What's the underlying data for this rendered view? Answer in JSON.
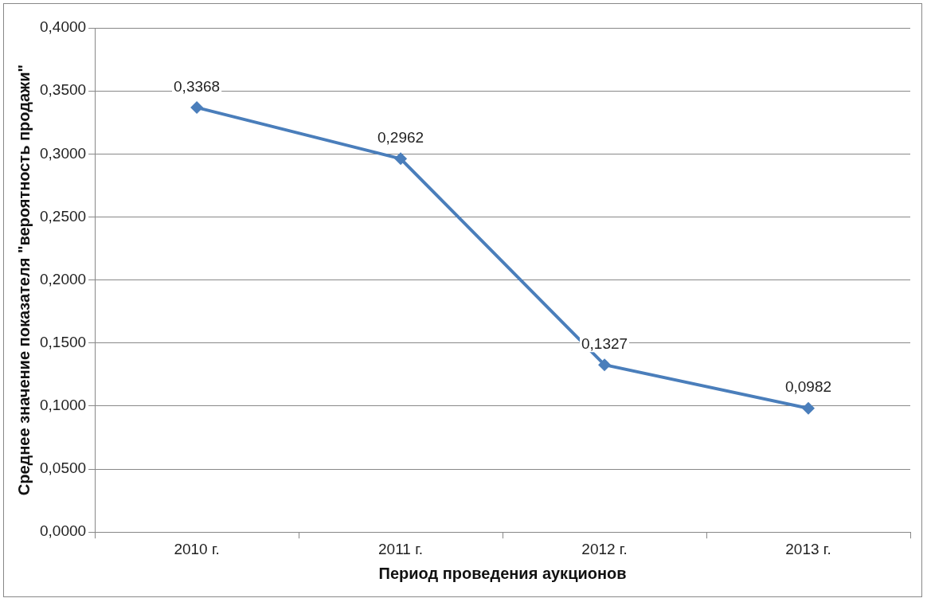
{
  "chart_data": {
    "type": "line",
    "xlabel": "Период проведения аукционов",
    "ylabel": "Среднее значение показателя \"вероятность продажи\"",
    "categories": [
      "2010 г.",
      "2011 г.",
      "2012 г.",
      "2013 г."
    ],
    "series": [
      {
        "color": "#4a7ebb",
        "values": [
          0.3368,
          0.2962,
          0.1327,
          0.0982
        ],
        "value_labels": [
          "0,3368",
          "0,2962",
          "0,1327",
          "0,0982"
        ]
      }
    ],
    "ylim": [
      0,
      0.4
    ],
    "yticks": [
      {
        "value": 0,
        "label": "0,0000"
      },
      {
        "value": 0.05,
        "label": "0,0500"
      },
      {
        "value": 0.1,
        "label": "0,1000"
      },
      {
        "value": 0.15,
        "label": "0,1500"
      },
      {
        "value": 0.2,
        "label": "0,2000"
      },
      {
        "value": 0.25,
        "label": "0,2500"
      },
      {
        "value": 0.3,
        "label": "0,3000"
      },
      {
        "value": 0.35,
        "label": "0,3500"
      },
      {
        "value": 0.4,
        "label": "0,4000"
      }
    ],
    "grid": "y",
    "legend": false,
    "marker": "diamond",
    "line_style": "solid"
  }
}
